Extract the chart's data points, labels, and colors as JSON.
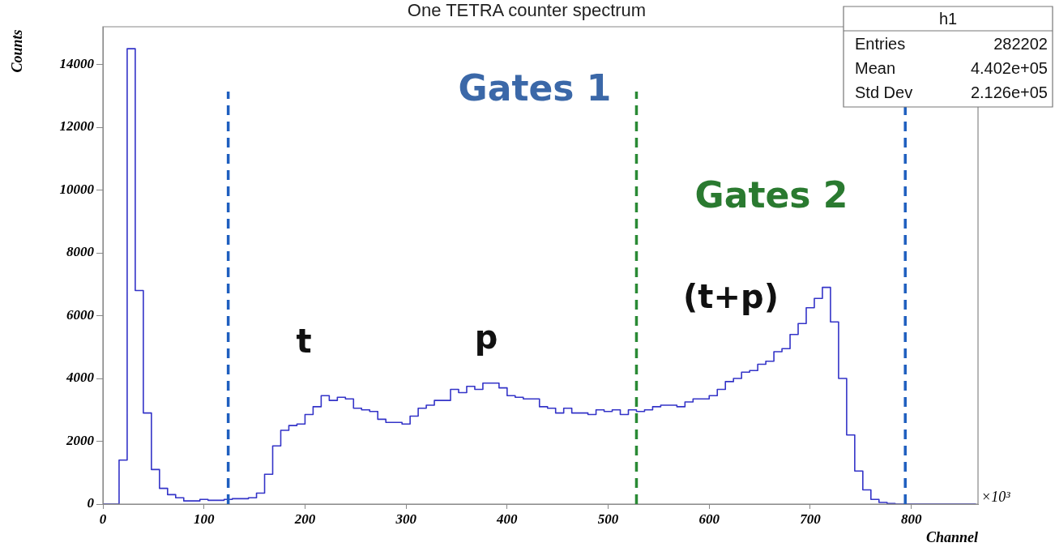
{
  "chart_data": {
    "type": "histogram",
    "title": "One TETRA counter spectrum",
    "xlabel": "Channel",
    "ylabel": "Counts",
    "bins": [
      0,
      8,
      16,
      24,
      32,
      40,
      48,
      56,
      64,
      72,
      80,
      88,
      96,
      104,
      112,
      120,
      128,
      136,
      144,
      152,
      160,
      168,
      176,
      184,
      192,
      200,
      208,
      216,
      224,
      232,
      240,
      248,
      256,
      264,
      272,
      280,
      288,
      296,
      304,
      312,
      320,
      328,
      336,
      344,
      352,
      360,
      368,
      376,
      384,
      392,
      400,
      408,
      416,
      424,
      432,
      440,
      448,
      456,
      464,
      472,
      480,
      488,
      496,
      504,
      512,
      520,
      528,
      536,
      544,
      552,
      560,
      568,
      576,
      584,
      592,
      600,
      608,
      616,
      624,
      632,
      640,
      648,
      656,
      664,
      672,
      680,
      688,
      696,
      704,
      712,
      720,
      728,
      736,
      744,
      752,
      760,
      768,
      776,
      784,
      792,
      800,
      808,
      816,
      824,
      832,
      840,
      848,
      856,
      864
    ],
    "values": [
      0,
      0,
      1400,
      14500,
      6800,
      2900,
      1100,
      500,
      300,
      200,
      100,
      100,
      150,
      120,
      120,
      150,
      170,
      170,
      200,
      350,
      950,
      1850,
      2350,
      2500,
      2550,
      2850,
      3100,
      3450,
      3300,
      3400,
      3350,
      3050,
      3000,
      2950,
      2700,
      2600,
      2600,
      2550,
      2800,
      3050,
      3150,
      3300,
      3300,
      3650,
      3550,
      3750,
      3650,
      3850,
      3850,
      3700,
      3450,
      3400,
      3350,
      3350,
      3100,
      3050,
      2900,
      3050,
      2900,
      2900,
      2850,
      3000,
      2950,
      3000,
      2850,
      3000,
      2950,
      3000,
      3100,
      3150,
      3150,
      3100,
      3250,
      3350,
      3350,
      3450,
      3650,
      3900,
      4000,
      4200,
      4250,
      4450,
      4550,
      4850,
      4950,
      5400,
      5750,
      6250,
      6550,
      6900,
      5800,
      4000,
      2200,
      1050,
      450,
      150,
      50,
      20,
      0,
      0,
      0,
      0,
      0,
      0,
      0,
      0,
      0,
      0
    ],
    "color": "#3434c8",
    "xlim": [
      0,
      866
    ],
    "xticks": [
      0,
      100,
      200,
      300,
      400,
      500,
      600,
      700,
      800
    ],
    "ylim": [
      0,
      15200
    ],
    "yticks": [
      0,
      2000,
      4000,
      6000,
      8000,
      10000,
      12000,
      14000
    ],
    "ref_lines": [
      {
        "axis": "x",
        "value": 124,
        "color": "#1f5fbf",
        "line_style": "dashed"
      },
      {
        "axis": "x",
        "value": 794,
        "color": "#1f5fbf",
        "line_style": "dashed"
      },
      {
        "axis": "x",
        "value": 528,
        "color": "#2a8a35",
        "line_style": "dashed"
      }
    ],
    "annotations": [
      "×10³",
      "h1",
      "Entries",
      "282202",
      "Mean",
      "4.402e+05",
      "Std Dev",
      "2.126e+05",
      "Gates 1",
      "Gates 2",
      "t",
      "p",
      "(t+p)"
    ],
    "grid": false,
    "legend": false
  }
}
